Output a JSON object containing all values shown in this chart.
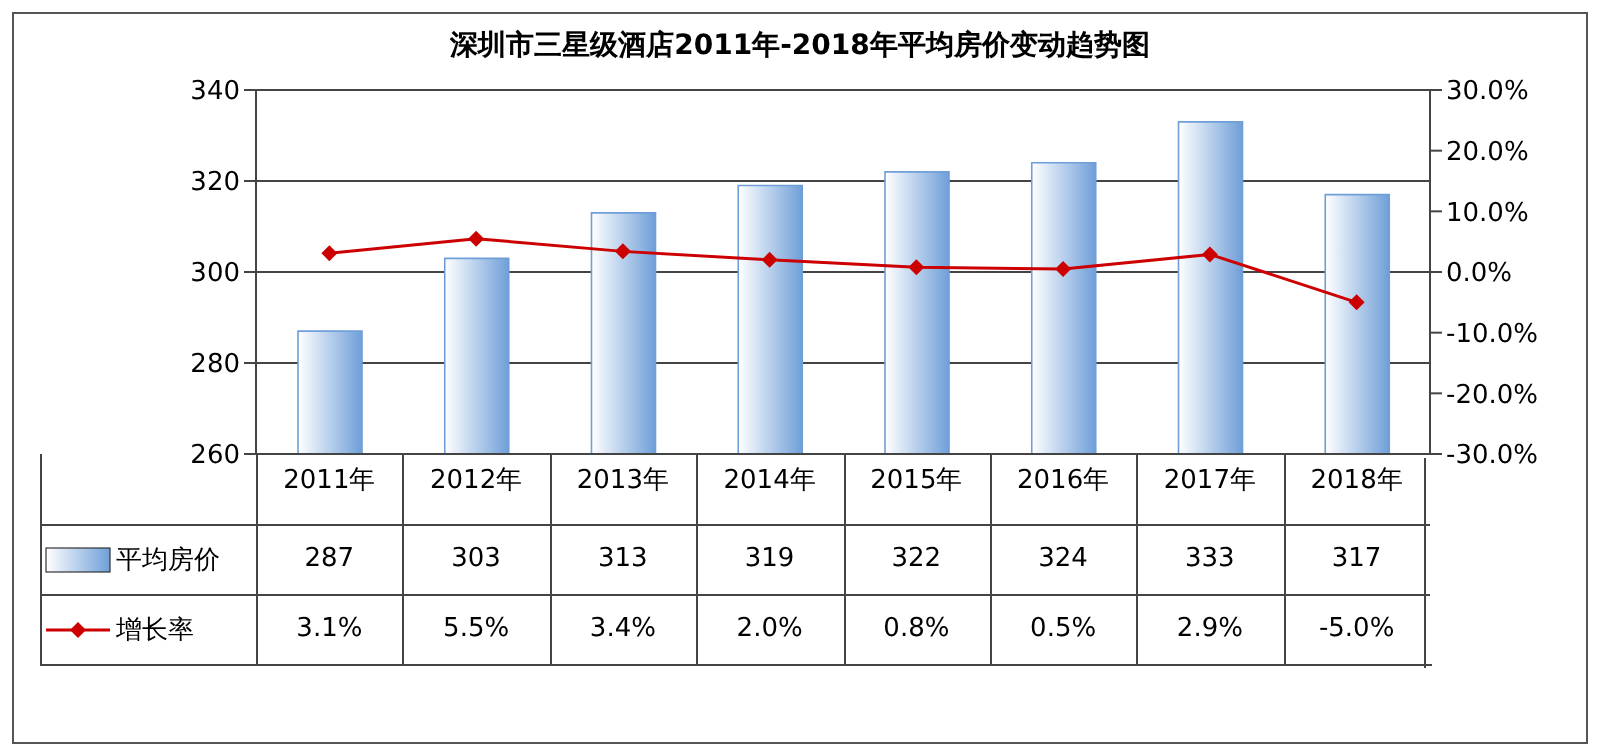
{
  "chart_data": {
    "type": "bar",
    "title": "深圳市三星级酒店2011年-2018年平均房价变动趋势图",
    "categories": [
      "2011年",
      "2012年",
      "2013年",
      "2014年",
      "2015年",
      "2016年",
      "2017年",
      "2018年"
    ],
    "series": [
      {
        "name": "平均房价",
        "color": "#6f9fd8",
        "values": [
          287,
          303,
          313,
          319,
          322,
          324,
          333,
          317
        ],
        "value_labels": [
          "287",
          "303",
          "313",
          "319",
          "322",
          "324",
          "333",
          "317"
        ]
      },
      {
        "name": "增长率",
        "type": "line",
        "axis": "y2",
        "color": "#cc0000",
        "marker": "diamond",
        "values": [
          3.1,
          5.5,
          3.4,
          2.0,
          0.8,
          0.5,
          2.9,
          -5.0
        ],
        "value_labels": [
          "3.1%",
          "5.5%",
          "3.4%",
          "2.0%",
          "0.8%",
          "0.5%",
          "2.9%",
          "-5.0%"
        ]
      }
    ],
    "ylim": [
      260,
      340
    ],
    "yticks": [
      260,
      280,
      300,
      320,
      340
    ],
    "y2lim": [
      -30,
      30
    ],
    "y2ticks": [
      {
        "value": -30,
        "label": "-30.0%"
      },
      {
        "value": -20,
        "label": "-20.0%"
      },
      {
        "value": -10,
        "label": "-10.0%"
      },
      {
        "value": 0,
        "label": "0.0%"
      },
      {
        "value": 10,
        "label": "10.0%"
      },
      {
        "value": 20,
        "label": "20.0%"
      },
      {
        "value": 30,
        "label": "30.0%"
      }
    ],
    "grid": "y",
    "legend": "bottom"
  }
}
